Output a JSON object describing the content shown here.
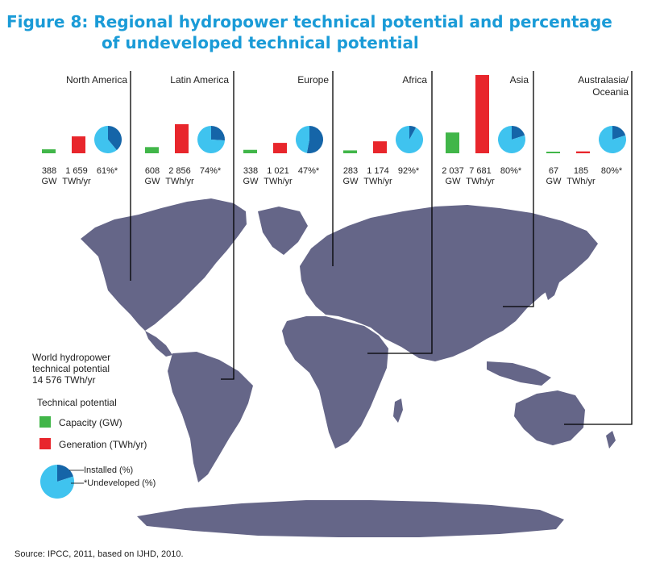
{
  "title_line1": "Figure 8: Regional hydropower technical potential and percentage",
  "title_line2": "of undeveloped technical potential",
  "source": "Source: IPCC, 2011, based on IJHD, 2010.",
  "colors": {
    "capacity": "#41b649",
    "generation": "#e8262c",
    "installed": "#1565a8",
    "undeveloped": "#3fc3ef",
    "map": "#656688",
    "title": "#1a9bd7"
  },
  "chart_data": {
    "type": "bar",
    "title": "Figure 8: Regional hydropower technical potential and percentage of undeveloped technical potential",
    "categories": [
      "North America",
      "Latin America",
      "Europe",
      "Africa",
      "Asia",
      "Australasia/ Oceania"
    ],
    "series": [
      {
        "name": "Capacity (GW)",
        "values": [
          388,
          608,
          338,
          283,
          2037,
          67
        ],
        "labels": [
          "388",
          "608",
          "338",
          "283",
          "2 037",
          "67"
        ],
        "unit": "GW"
      },
      {
        "name": "Generation (TWh/yr)",
        "values": [
          1659,
          2856,
          1021,
          1174,
          7681,
          185
        ],
        "labels": [
          "1 659",
          "2 856",
          "1 021",
          "1 174",
          "7 681",
          "185"
        ],
        "unit": "TWh/yr"
      }
    ],
    "undeveloped_pct": [
      61,
      74,
      47,
      92,
      80,
      80
    ],
    "undeveloped_labels": [
      "61%*",
      "74%*",
      "47%*",
      "92%*",
      "80%*",
      "80%*"
    ],
    "legend": {
      "world_line1": "World hydropower",
      "world_line2": "technical potential",
      "world_line3": "14 576 TWh/yr",
      "header": "Technical potential",
      "capacity": "Capacity (GW)",
      "generation": "Generation (TWh/yr)",
      "installed": "Installed (%)",
      "undeveloped": "*Undeveloped (%)"
    }
  }
}
